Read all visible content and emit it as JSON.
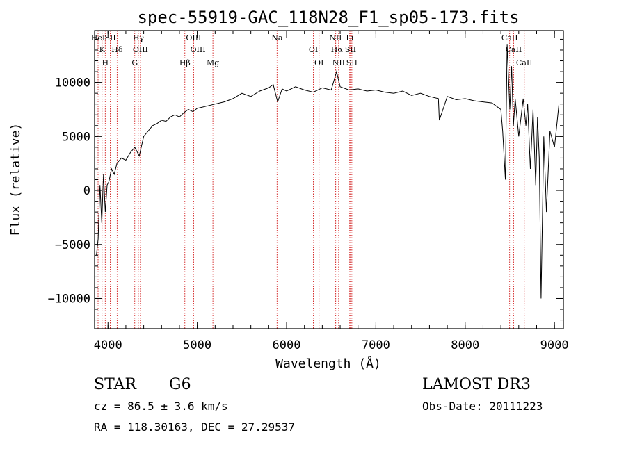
{
  "chart_data": {
    "type": "line",
    "title": "spec-55919-GAC_118N28_F1_sp05-173.fits",
    "xlabel": "Wavelength (Å)",
    "ylabel": "Flux (relative)",
    "xlim": [
      3850,
      9100
    ],
    "ylim": [
      -12800,
      14800
    ],
    "x_ticks": [
      4000,
      5000,
      6000,
      7000,
      8000,
      9000
    ],
    "x_tick_labels": [
      "4000",
      "5000",
      "6000",
      "7000",
      "8000",
      "9000"
    ],
    "y_ticks": [
      -10000,
      -5000,
      0,
      5000,
      10000
    ],
    "y_tick_labels": [
      "−10000",
      "−5000",
      "0",
      "5000",
      "10000"
    ],
    "series": [
      {
        "name": "flux",
        "x": [
          3870,
          3890,
          3910,
          3930,
          3950,
          3970,
          3990,
          4010,
          4040,
          4070,
          4100,
          4150,
          4200,
          4250,
          4300,
          4350,
          4400,
          4450,
          4500,
          4550,
          4600,
          4650,
          4700,
          4750,
          4800,
          4850,
          4900,
          4950,
          5000,
          5100,
          5200,
          5300,
          5400,
          5500,
          5600,
          5700,
          5800,
          5850,
          5900,
          5950,
          6000,
          6100,
          6200,
          6300,
          6400,
          6500,
          6560,
          6600,
          6700,
          6800,
          6900,
          7000,
          7100,
          7200,
          7300,
          7400,
          7500,
          7600,
          7700,
          7710,
          7800,
          7900,
          8000,
          8100,
          8200,
          8300,
          8350,
          8400,
          8420,
          8450,
          8470,
          8500,
          8520,
          8540,
          8560,
          8600,
          8650,
          8680,
          8700,
          8730,
          8760,
          8790,
          8810,
          8830,
          8850,
          8880,
          8910,
          8950,
          9000,
          9050
        ],
        "values": [
          -6000,
          -4500,
          500,
          -3000,
          1500,
          -2000,
          500,
          800,
          2000,
          1500,
          2500,
          3000,
          2800,
          3500,
          4000,
          3200,
          5000,
          5500,
          6000,
          6200,
          6500,
          6400,
          6800,
          7000,
          6800,
          7200,
          7500,
          7300,
          7600,
          7800,
          8000,
          8200,
          8500,
          9000,
          8700,
          9200,
          9500,
          9800,
          8200,
          9400,
          9200,
          9600,
          9300,
          9100,
          9500,
          9300,
          11000,
          9600,
          9300,
          9400,
          9200,
          9300,
          9100,
          9000,
          9200,
          8800,
          9000,
          8700,
          8500,
          6500,
          8700,
          8400,
          8500,
          8300,
          8200,
          8100,
          7800,
          7500,
          5500,
          1000,
          13500,
          7500,
          11500,
          6000,
          8500,
          5000,
          8500,
          6000,
          8000,
          2000,
          7500,
          500,
          6800,
          3000,
          -10000,
          5000,
          -2000,
          5500,
          4000,
          8000
        ]
      }
    ],
    "lines": [
      {
        "wave": 3889,
        "labels": [
          "HeI"
        ]
      },
      {
        "wave": 3934,
        "labels": [
          "K"
        ]
      },
      {
        "wave": 3969,
        "labels": [
          "H"
        ]
      },
      {
        "wave": 4026,
        "labels": [
          "SII"
        ]
      },
      {
        "wave": 4102,
        "labels": [
          "Hδ"
        ]
      },
      {
        "wave": 4300,
        "labels": [
          "G"
        ]
      },
      {
        "wave": 4340,
        "labels": [
          "Hγ"
        ]
      },
      {
        "wave": 4363,
        "labels": [
          "OIII"
        ]
      },
      {
        "wave": 4861,
        "labels": [
          "Hβ"
        ]
      },
      {
        "wave": 4959,
        "labels": [
          "OIII"
        ]
      },
      {
        "wave": 5007,
        "labels": [
          "OIII"
        ]
      },
      {
        "wave": 5175,
        "labels": [
          "Mg"
        ]
      },
      {
        "wave": 5893,
        "labels": [
          "Na"
        ]
      },
      {
        "wave": 6300,
        "labels": [
          "OI"
        ]
      },
      {
        "wave": 6364,
        "labels": [
          "OI"
        ]
      },
      {
        "wave": 6548,
        "labels": [
          "NII"
        ]
      },
      {
        "wave": 6563,
        "labels": [
          "Hα"
        ]
      },
      {
        "wave": 6583,
        "labels": [
          "NII"
        ]
      },
      {
        "wave": 6707,
        "labels": [
          "Li"
        ]
      },
      {
        "wave": 6716,
        "labels": [
          "SII"
        ]
      },
      {
        "wave": 6731,
        "labels": [
          "SII"
        ]
      },
      {
        "wave": 8498,
        "labels": [
          "CaII"
        ]
      },
      {
        "wave": 8542,
        "labels": [
          "CaII"
        ]
      },
      {
        "wave": 8662,
        "labels": [
          "CaII"
        ]
      }
    ]
  },
  "info": {
    "object_class": "STAR",
    "subclass": "G6",
    "survey": "LAMOST DR3",
    "redshift": "cz = 86.5 ± 3.6 km/s",
    "obs_date": "Obs-Date: 20111223",
    "coords": "RA = 118.30163, DEC =  27.29537"
  },
  "colors": {
    "line_marker": "#cc0000",
    "spectrum": "#000000"
  }
}
